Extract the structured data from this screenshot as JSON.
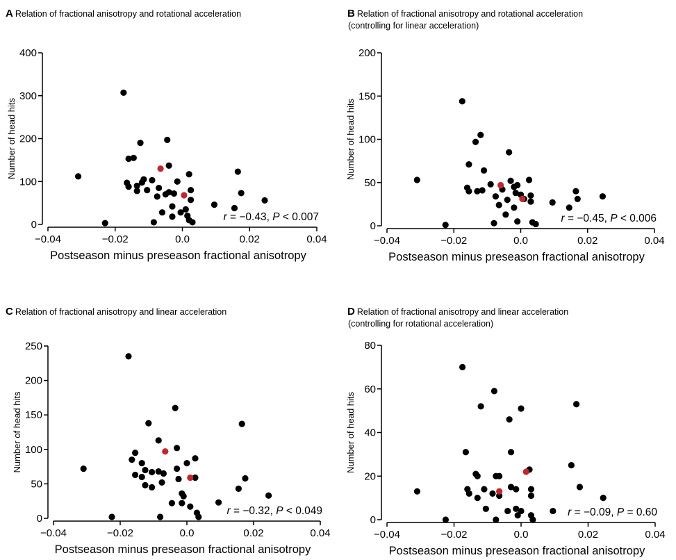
{
  "colors": {
    "point": "#000000",
    "highlight": "#c0282d",
    "axis": "#000000"
  },
  "chart_data": [
    {
      "type": "scatter",
      "letter": "A",
      "title_lines": [
        "Relation of fractional anisotropy and rotational acceleration"
      ],
      "xlabel": "Postseason minus preseason fractional anisotropy",
      "ylabel": "Number of head hits",
      "xlim": [
        -0.04,
        0.04
      ],
      "ylim": [
        0,
        400
      ],
      "xticks": [
        -0.04,
        -0.02,
        0.0,
        0.02,
        0.04
      ],
      "xtick_labels": [
        "−0.04",
        "−0.02",
        "0.0",
        "0.02",
        "0.04"
      ],
      "yticks": [
        0,
        100,
        200,
        300,
        400
      ],
      "ytick_labels": [
        "0",
        "100",
        "200",
        "300",
        "400"
      ],
      "stat": {
        "r_label": "r",
        "r_text": " = −0.43, ",
        "p_label": "P",
        "p_text": " < 0.007"
      },
      "points": [
        [
          -0.031,
          112
        ],
        [
          -0.023,
          3
        ],
        [
          -0.0175,
          307
        ],
        [
          -0.0165,
          97
        ],
        [
          -0.016,
          153
        ],
        [
          -0.016,
          88
        ],
        [
          -0.0145,
          155
        ],
        [
          -0.0135,
          78
        ],
        [
          -0.0135,
          90
        ],
        [
          -0.0125,
          190
        ],
        [
          -0.012,
          98
        ],
        [
          -0.0115,
          105
        ],
        [
          -0.0105,
          80
        ],
        [
          -0.009,
          103
        ],
        [
          -0.0085,
          5
        ],
        [
          -0.0075,
          65
        ],
        [
          -0.007,
          85
        ],
        [
          -0.006,
          28
        ],
        [
          -0.005,
          70
        ],
        [
          -0.0045,
          197
        ],
        [
          -0.004,
          137
        ],
        [
          -0.004,
          75
        ],
        [
          -0.003,
          42
        ],
        [
          -0.003,
          18
        ],
        [
          -0.0025,
          72
        ],
        [
          -0.0015,
          100
        ],
        [
          -0.0005,
          28
        ],
        [
          0.001,
          35
        ],
        [
          0.0015,
          20
        ],
        [
          0.002,
          117
        ],
        [
          0.002,
          10
        ],
        [
          0.0025,
          80
        ],
        [
          0.0025,
          57
        ],
        [
          0.003,
          5
        ],
        [
          0.0095,
          46
        ],
        [
          0.0155,
          38
        ],
        [
          0.0165,
          123
        ],
        [
          0.0175,
          73
        ],
        [
          0.0245,
          56
        ]
      ],
      "highlight_points": [
        [
          -0.0065,
          130
        ],
        [
          0.0005,
          68
        ]
      ]
    },
    {
      "type": "scatter",
      "letter": "B",
      "title_lines": [
        "Relation of fractional anisotropy and rotational acceleration",
        "(controlling for linear acceleration)"
      ],
      "xlabel": "Postseason minus preseason fractional anisotropy",
      "ylabel": "Number of head hits",
      "xlim": [
        -0.04,
        0.04
      ],
      "ylim": [
        0,
        200
      ],
      "xticks": [
        -0.04,
        -0.02,
        0.0,
        0.02,
        0.04
      ],
      "xtick_labels": [
        "−0.04",
        "−0.02",
        "0.0",
        "0.02",
        "0.04"
      ],
      "yticks": [
        0,
        50,
        100,
        150,
        200
      ],
      "ytick_labels": [
        "0",
        "50",
        "100",
        "150",
        "200"
      ],
      "stat": {
        "r_label": "r",
        "r_text": " = −0.45, ",
        "p_label": "P",
        "p_text": " < 0.006"
      },
      "points": [
        [
          -0.031,
          53
        ],
        [
          -0.0225,
          1
        ],
        [
          -0.0175,
          144
        ],
        [
          -0.016,
          44
        ],
        [
          -0.0155,
          71
        ],
        [
          -0.0155,
          40
        ],
        [
          -0.0135,
          97
        ],
        [
          -0.013,
          40
        ],
        [
          -0.012,
          105
        ],
        [
          -0.0115,
          41
        ],
        [
          -0.011,
          64
        ],
        [
          -0.009,
          48
        ],
        [
          -0.008,
          3
        ],
        [
          -0.0075,
          34
        ],
        [
          -0.0065,
          24
        ],
        [
          -0.0055,
          42
        ],
        [
          -0.0045,
          13
        ],
        [
          -0.004,
          30
        ],
        [
          -0.0035,
          85
        ],
        [
          -0.003,
          52
        ],
        [
          -0.002,
          21
        ],
        [
          -0.002,
          45
        ],
        [
          -0.0015,
          38
        ],
        [
          -0.001,
          5
        ],
        [
          -0.001,
          47
        ],
        [
          0.0,
          36
        ],
        [
          0.001,
          31
        ],
        [
          0.0025,
          53
        ],
        [
          0.003,
          35
        ],
        [
          0.003,
          28
        ],
        [
          0.0035,
          4
        ],
        [
          0.0045,
          2
        ],
        [
          0.0095,
          27
        ],
        [
          0.0145,
          21
        ],
        [
          0.0165,
          40
        ],
        [
          0.017,
          31
        ],
        [
          0.0245,
          34
        ]
      ],
      "highlight_points": [
        [
          -0.006,
          47
        ],
        [
          0.0005,
          31
        ]
      ]
    },
    {
      "type": "scatter",
      "letter": "C",
      "title_lines": [
        "Relation of fractional anisotropy and linear acceleration"
      ],
      "xlabel": "Postseason minus preseason fractional anisotropy",
      "ylabel": "Number of head hits",
      "xlim": [
        -0.04,
        0.04
      ],
      "ylim": [
        0,
        250
      ],
      "xticks": [
        -0.04,
        -0.02,
        0.0,
        0.02,
        0.04
      ],
      "xtick_labels": [
        "−0.04",
        "−0.02",
        "0.0",
        "0.02",
        "0.04"
      ],
      "yticks": [
        0,
        50,
        100,
        150,
        200,
        250
      ],
      "ytick_labels": [
        "0",
        "50",
        "100",
        "150",
        "200",
        "250"
      ],
      "stat": {
        "r_label": "r",
        "r_text": " = −0.32, ",
        "p_label": "P",
        "p_text": " < 0.049"
      },
      "points": [
        [
          -0.031,
          72
        ],
        [
          -0.0225,
          2
        ],
        [
          -0.0175,
          235
        ],
        [
          -0.0165,
          85
        ],
        [
          -0.0155,
          95
        ],
        [
          -0.0155,
          63
        ],
        [
          -0.0135,
          80
        ],
        [
          -0.0135,
          60
        ],
        [
          -0.0125,
          70
        ],
        [
          -0.0125,
          48
        ],
        [
          -0.0115,
          138
        ],
        [
          -0.0105,
          67
        ],
        [
          -0.0105,
          45
        ],
        [
          -0.0085,
          113
        ],
        [
          -0.0085,
          68
        ],
        [
          -0.008,
          2
        ],
        [
          -0.0075,
          52
        ],
        [
          -0.007,
          65
        ],
        [
          -0.0045,
          22
        ],
        [
          -0.0035,
          160
        ],
        [
          -0.003,
          102
        ],
        [
          -0.003,
          72
        ],
        [
          -0.0025,
          57
        ],
        [
          -0.0015,
          36
        ],
        [
          -0.0015,
          22
        ],
        [
          -0.001,
          32
        ],
        [
          0.0,
          80
        ],
        [
          0.001,
          17
        ],
        [
          0.0025,
          87
        ],
        [
          0.0025,
          59
        ],
        [
          0.003,
          8
        ],
        [
          0.0035,
          2
        ],
        [
          0.0095,
          23
        ],
        [
          0.0155,
          43
        ],
        [
          0.0165,
          137
        ],
        [
          0.0175,
          58
        ],
        [
          0.0245,
          33
        ]
      ],
      "highlight_points": [
        [
          -0.0065,
          97
        ],
        [
          0.001,
          59
        ]
      ]
    },
    {
      "type": "scatter",
      "letter": "D",
      "title_lines": [
        "Relation of fractional anisotropy and linear acceleration",
        "(controlling for rotational acceleration)"
      ],
      "xlabel": "Postseason minus preseason fractional anisotropy",
      "ylabel": "Number of head hits",
      "xlim": [
        -0.04,
        0.04
      ],
      "ylim": [
        0,
        80
      ],
      "xticks": [
        -0.04,
        -0.02,
        0.0,
        0.02,
        0.04
      ],
      "xtick_labels": [
        "−0.04",
        "−0.02",
        "0.0",
        "0.02",
        "0.04"
      ],
      "yticks": [
        0,
        20,
        40,
        60,
        80
      ],
      "ytick_labels": [
        "0",
        "20",
        "40",
        "60",
        "80"
      ],
      "stat": {
        "r_label": "r",
        "r_text": " = −0.09, ",
        "p_label": "P",
        "p_text": " = 0.60"
      },
      "points": [
        [
          -0.031,
          13
        ],
        [
          -0.0225,
          0
        ],
        [
          -0.0175,
          70
        ],
        [
          -0.0165,
          31
        ],
        [
          -0.016,
          14
        ],
        [
          -0.0155,
          12
        ],
        [
          -0.0135,
          21
        ],
        [
          -0.013,
          20
        ],
        [
          -0.013,
          10
        ],
        [
          -0.012,
          52
        ],
        [
          -0.011,
          14
        ],
        [
          -0.0105,
          5
        ],
        [
          -0.0085,
          12
        ],
        [
          -0.008,
          59
        ],
        [
          -0.0075,
          20
        ],
        [
          -0.0075,
          0
        ],
        [
          -0.0065,
          20
        ],
        [
          -0.0065,
          11
        ],
        [
          -0.004,
          4
        ],
        [
          -0.0035,
          46
        ],
        [
          -0.003,
          31
        ],
        [
          -0.003,
          15
        ],
        [
          -0.0015,
          5
        ],
        [
          -0.0015,
          14
        ],
        [
          -0.001,
          2
        ],
        [
          0.0,
          51
        ],
        [
          0.0,
          4
        ],
        [
          0.0025,
          23
        ],
        [
          0.003,
          14
        ],
        [
          0.003,
          11
        ],
        [
          0.003,
          2
        ],
        [
          0.0035,
          0
        ],
        [
          0.0095,
          4
        ],
        [
          0.015,
          25
        ],
        [
          0.0165,
          53
        ],
        [
          0.0175,
          15
        ],
        [
          0.0245,
          10
        ]
      ],
      "highlight_points": [
        [
          -0.0065,
          13
        ],
        [
          0.0015,
          22
        ]
      ]
    }
  ]
}
